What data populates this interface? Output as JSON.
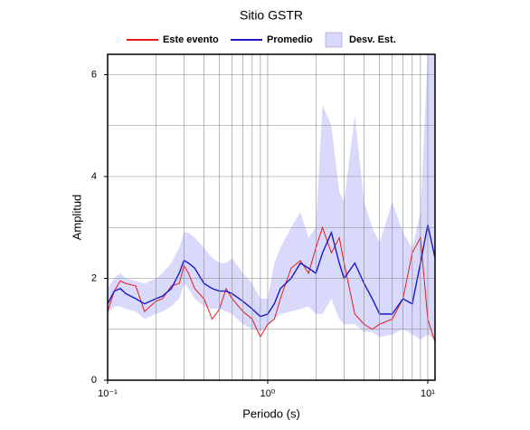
{
  "chart_data": {
    "type": "line",
    "title": "Sitio GSTR",
    "xlabel": "Periodo (s)",
    "ylabel": "Amplitud",
    "log_x": true,
    "legend": "top",
    "x": [
      0.1,
      0.11,
      0.12,
      0.13,
      0.15,
      0.17,
      0.2,
      0.22,
      0.25,
      0.28,
      0.3,
      0.32,
      0.35,
      0.4,
      0.45,
      0.5,
      0.55,
      0.6,
      0.7,
      0.8,
      0.9,
      1.0,
      1.1,
      1.2,
      1.4,
      1.6,
      1.8,
      2.0,
      2.2,
      2.5,
      2.8,
      3.0,
      3.5,
      4,
      4.5,
      5,
      6,
      7,
      8,
      9,
      10,
      11.1
    ],
    "band": {
      "name": "Desv. Est.",
      "color": "#d9d9fb",
      "lower": [
        1.3,
        1.45,
        1.45,
        1.4,
        1.35,
        1.2,
        1.3,
        1.35,
        1.45,
        1.6,
        1.9,
        1.8,
        1.6,
        1.45,
        1.4,
        1.4,
        1.35,
        1.3,
        1.1,
        1.0,
        0.95,
        1.05,
        1.2,
        1.3,
        1.35,
        1.4,
        1.45,
        1.3,
        1.3,
        1.6,
        1.2,
        1.1,
        1.1,
        0.95,
        0.95,
        0.85,
        0.9,
        1.0,
        0.9,
        0.8,
        0.9,
        0.8
      ],
      "upper": [
        1.8,
        2.0,
        2.1,
        2.0,
        1.95,
        1.9,
        2.0,
        2.1,
        2.3,
        2.6,
        2.9,
        2.9,
        2.8,
        2.6,
        2.4,
        2.3,
        2.3,
        2.4,
        2.1,
        1.9,
        1.6,
        1.6,
        2.3,
        2.6,
        3.0,
        3.3,
        2.8,
        3.0,
        5.4,
        5.0,
        3.7,
        3.5,
        5.2,
        3.5,
        3.0,
        2.7,
        3.5,
        2.9,
        2.6,
        3.3,
        6.4,
        6.4
      ]
    },
    "series": [
      {
        "name": "Este evento",
        "color": "#e8191c",
        "values": [
          1.35,
          1.75,
          1.95,
          1.9,
          1.85,
          1.35,
          1.55,
          1.6,
          1.85,
          1.9,
          2.25,
          2.1,
          1.8,
          1.6,
          1.2,
          1.4,
          1.8,
          1.6,
          1.35,
          1.2,
          0.85,
          1.1,
          1.2,
          1.6,
          2.2,
          2.35,
          2.1,
          2.6,
          3.0,
          2.5,
          2.8,
          2.3,
          1.3,
          1.1,
          1.0,
          1.1,
          1.2,
          1.6,
          2.5,
          2.8,
          1.2,
          0.75
        ]
      },
      {
        "name": "Promedio",
        "color": "#1a1ac8",
        "values": [
          1.5,
          1.75,
          1.8,
          1.7,
          1.6,
          1.5,
          1.6,
          1.65,
          1.8,
          2.1,
          2.35,
          2.3,
          2.2,
          1.9,
          1.8,
          1.75,
          1.75,
          1.7,
          1.55,
          1.4,
          1.25,
          1.3,
          1.5,
          1.8,
          2.0,
          2.3,
          2.2,
          2.1,
          2.5,
          2.9,
          2.3,
          2.0,
          2.3,
          1.9,
          1.6,
          1.3,
          1.3,
          1.6,
          1.5,
          2.3,
          3.05,
          2.4
        ]
      }
    ],
    "xlim": [
      0.1,
      11.1
    ],
    "ylim": [
      0,
      6.4
    ],
    "xticks": [
      {
        "value": 0.1,
        "label": "10⁻¹"
      },
      {
        "value": 1,
        "label": "10⁰"
      },
      {
        "value": 10,
        "label": "10¹"
      }
    ],
    "yticks": [
      0,
      2,
      4,
      6
    ],
    "xgrid": [
      0.2,
      0.3,
      0.4,
      0.5,
      0.6,
      0.7,
      0.8,
      0.9,
      1,
      2,
      3,
      4,
      5,
      6,
      7,
      8,
      9,
      10
    ],
    "ygrid": [
      1,
      2,
      3,
      4,
      5,
      6
    ]
  }
}
